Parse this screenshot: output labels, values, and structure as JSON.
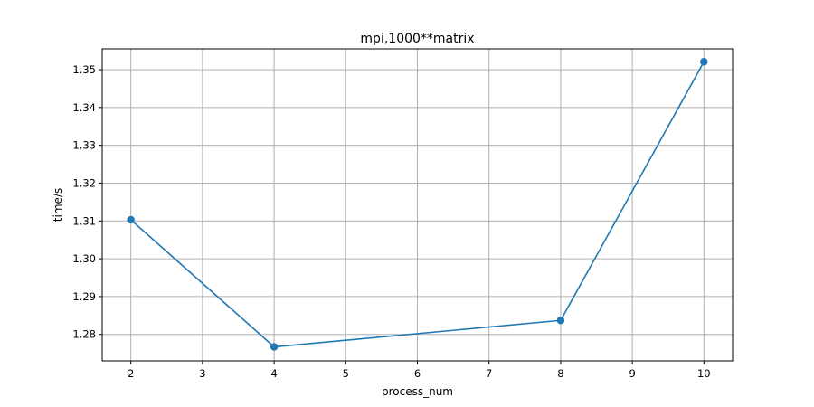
{
  "chart_data": {
    "type": "line",
    "title": "mpi,1000**matrix",
    "xlabel": "process_num",
    "ylabel": "time/s",
    "x": [
      2,
      4,
      8,
      10
    ],
    "series": [
      {
        "values": [
          1.3103,
          1.2767,
          1.2837,
          1.3521
        ],
        "marker": "circle"
      }
    ],
    "xticks": [
      2,
      3,
      4,
      5,
      6,
      7,
      8,
      9,
      10
    ],
    "xtick_labels": [
      "2",
      "3",
      "4",
      "5",
      "6",
      "7",
      "8",
      "9",
      "10"
    ],
    "yticks": [
      1.28,
      1.29,
      1.3,
      1.31,
      1.32,
      1.33,
      1.34,
      1.35
    ],
    "ytick_labels": [
      "1.28",
      "1.29",
      "1.30",
      "1.31",
      "1.32",
      "1.33",
      "1.34",
      "1.35"
    ],
    "xlim": [
      1.6,
      10.4
    ],
    "ylim": [
      1.273,
      1.3555
    ],
    "grid": true,
    "colors": {
      "line": "#1f77b4",
      "grid": "#b0b0b0",
      "axes": "#000000"
    }
  }
}
